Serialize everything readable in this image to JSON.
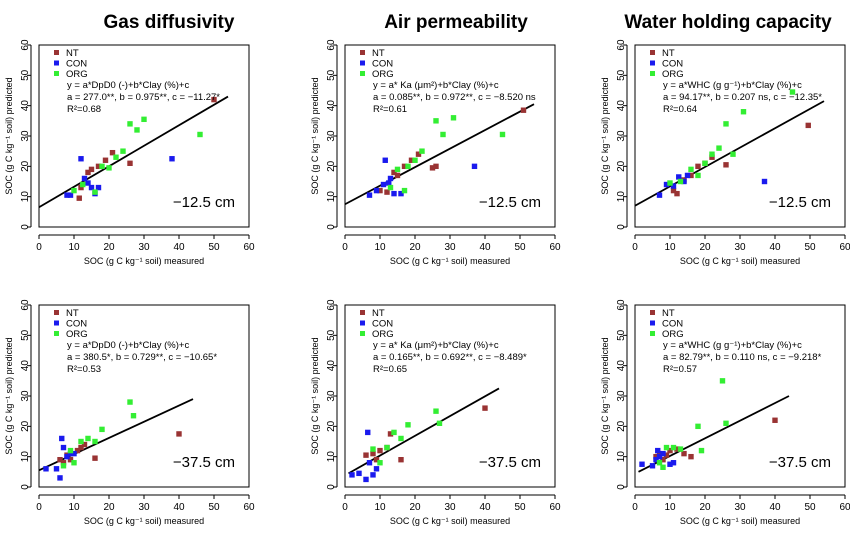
{
  "titles": [
    "Gas diffusivity",
    "Air permeability",
    "Water holding capacity"
  ],
  "xlabel": "SOC (g C kg⁻¹ soil) measured",
  "ylabel": "SOC (g C kg⁻¹ soil)  predicted",
  "legend": [
    "NT",
    "CON",
    "ORG"
  ],
  "colors": {
    "NT": "#993333",
    "CON": "#1a1aee",
    "ORG": "#33ee33",
    "line": "#000000"
  },
  "chart_data": [
    {
      "type": "scatter",
      "row": 0,
      "col": 0,
      "xlim": [
        0,
        60
      ],
      "ylim": [
        0,
        60
      ],
      "ticks": [
        0,
        10,
        20,
        30,
        40,
        50,
        60
      ],
      "equation": "y = a*DpD0 (-)+b*Clay (%)+c",
      "params": "a = 277.0**, b = 0.975**, c = −11.27*",
      "r2": "R²=0.68",
      "depth": "−12.5 cm",
      "fit": [
        [
          0,
          6.5
        ],
        [
          54,
          43
        ]
      ],
      "series": [
        {
          "name": "NT",
          "points": [
            [
              11.5,
              9.5
            ],
            [
              12,
              13
            ],
            [
              14,
              18
            ],
            [
              15,
              19
            ],
            [
              17,
              20
            ],
            [
              19,
              22
            ],
            [
              21,
              24.5
            ],
            [
              26,
              21
            ],
            [
              50,
              42
            ]
          ]
        },
        {
          "name": "CON",
          "points": [
            [
              8,
              10.5
            ],
            [
              9,
              10.5
            ],
            [
              12,
              22.5
            ],
            [
              13,
              16
            ],
            [
              14,
              14.5
            ],
            [
              15,
              13
            ],
            [
              16,
              11
            ],
            [
              17,
              13
            ],
            [
              38,
              22.5
            ]
          ]
        },
        {
          "name": "ORG",
          "points": [
            [
              10,
              12
            ],
            [
              12.5,
              14
            ],
            [
              16,
              11.5
            ],
            [
              18,
              20
            ],
            [
              20,
              19.5
            ],
            [
              22,
              23
            ],
            [
              24,
              25
            ],
            [
              26,
              34
            ],
            [
              28,
              32
            ],
            [
              30,
              35.5
            ],
            [
              46,
              30.5
            ]
          ]
        }
      ]
    },
    {
      "type": "scatter",
      "row": 0,
      "col": 1,
      "xlim": [
        0,
        60
      ],
      "ylim": [
        0,
        60
      ],
      "ticks": [
        0,
        10,
        20,
        30,
        40,
        50,
        60
      ],
      "equation": "y = a* Ka (μm²)+b*Clay (%)+c",
      "params": "a = 0.085**, b = 0.972**, c = −8.520 ns",
      "r2": "R²=0.61",
      "depth": "−12.5 cm",
      "fit": [
        [
          0,
          7.5
        ],
        [
          54,
          40.5
        ]
      ],
      "series": [
        {
          "name": "NT",
          "points": [
            [
              10,
              12
            ],
            [
              12,
              11.5
            ],
            [
              14,
              18
            ],
            [
              15,
              17
            ],
            [
              17,
              20
            ],
            [
              19,
              22
            ],
            [
              21,
              24
            ],
            [
              25,
              19.5
            ],
            [
              26,
              20
            ],
            [
              51,
              38.5
            ]
          ]
        },
        {
          "name": "CON",
          "points": [
            [
              7,
              10.5
            ],
            [
              9,
              12
            ],
            [
              11,
              14
            ],
            [
              11.5,
              22
            ],
            [
              12.5,
              14.5
            ],
            [
              13,
              16
            ],
            [
              14,
              11
            ],
            [
              16,
              11
            ],
            [
              37,
              20
            ]
          ]
        },
        {
          "name": "ORG",
          "points": [
            [
              13,
              13
            ],
            [
              15,
              19
            ],
            [
              17,
              12
            ],
            [
              18,
              20
            ],
            [
              20,
              22
            ],
            [
              22,
              25
            ],
            [
              26,
              35
            ],
            [
              28,
              30.5
            ],
            [
              31,
              36
            ],
            [
              45,
              30.5
            ]
          ]
        }
      ]
    },
    {
      "type": "scatter",
      "row": 0,
      "col": 2,
      "xlim": [
        0,
        60
      ],
      "ylim": [
        0,
        60
      ],
      "ticks": [
        0,
        10,
        20,
        30,
        40,
        50,
        60
      ],
      "equation": "y = a*WHC (g g⁻¹)+b*Clay (%)+c",
      "params": "a = 94.17**, b = 0.207 ns, c = −12.35*",
      "r2": "R²=0.64",
      "depth": "−12.5 cm",
      "fit": [
        [
          0,
          7
        ],
        [
          54,
          41.5
        ]
      ],
      "series": [
        {
          "name": "NT",
          "points": [
            [
              11,
              12
            ],
            [
              12,
              11
            ],
            [
              14,
              15.5
            ],
            [
              16,
              17
            ],
            [
              18,
              20
            ],
            [
              20,
              21
            ],
            [
              22,
              23
            ],
            [
              26,
              20.5
            ],
            [
              49.5,
              33.5
            ]
          ]
        },
        {
          "name": "CON",
          "points": [
            [
              7,
              10.5
            ],
            [
              9,
              14
            ],
            [
              11,
              13.5
            ],
            [
              12.5,
              16.5
            ],
            [
              14,
              15
            ],
            [
              15,
              17
            ],
            [
              37,
              15
            ]
          ]
        },
        {
          "name": "ORG",
          "points": [
            [
              10,
              14.5
            ],
            [
              13,
              15
            ],
            [
              16,
              19
            ],
            [
              18,
              17
            ],
            [
              20,
              21
            ],
            [
              22,
              24
            ],
            [
              24,
              26
            ],
            [
              26,
              34
            ],
            [
              28,
              24
            ],
            [
              31,
              38
            ],
            [
              45,
              44.5
            ]
          ]
        }
      ]
    },
    {
      "type": "scatter",
      "row": 1,
      "col": 0,
      "xlim": [
        0,
        60
      ],
      "ylim": [
        0,
        60
      ],
      "ticks": [
        0,
        10,
        20,
        30,
        40,
        50,
        60
      ],
      "equation": "y = a*DpD0 (-)+b*Clay (%)+c",
      "params": "a = 380.5*, b = 0.729**, c = −10.65*",
      "r2": "R²=0.53",
      "depth": "−37.5 cm",
      "fit": [
        [
          0,
          5.5
        ],
        [
          44,
          29
        ]
      ],
      "series": [
        {
          "name": "NT",
          "points": [
            [
              6,
              9
            ],
            [
              7,
              8
            ],
            [
              8,
              10.5
            ],
            [
              9,
              9
            ],
            [
              11,
              12
            ],
            [
              12,
              13
            ],
            [
              13,
              14
            ],
            [
              16,
              9.5
            ],
            [
              40,
              17.5
            ]
          ]
        },
        {
          "name": "CON",
          "points": [
            [
              2,
              6
            ],
            [
              5,
              6
            ],
            [
              6,
              3
            ],
            [
              6.5,
              16
            ],
            [
              7,
              13
            ],
            [
              8,
              10
            ],
            [
              9,
              11
            ],
            [
              10,
              11
            ]
          ]
        },
        {
          "name": "ORG",
          "points": [
            [
              7,
              7
            ],
            [
              9,
              12
            ],
            [
              10,
              8
            ],
            [
              12,
              15
            ],
            [
              14,
              16
            ],
            [
              16,
              15
            ],
            [
              18,
              19
            ],
            [
              26,
              28
            ],
            [
              27,
              23.5
            ]
          ]
        }
      ]
    },
    {
      "type": "scatter",
      "row": 1,
      "col": 1,
      "xlim": [
        0,
        60
      ],
      "ylim": [
        0,
        60
      ],
      "ticks": [
        0,
        10,
        20,
        30,
        40,
        50,
        60
      ],
      "equation": "y = a* Ka (μm²)+b*Clay (%)+c",
      "params": "a = 0.165**, b = 0.692**, c = −8.489*",
      "r2": "R²=0.65",
      "depth": "−37.5 cm",
      "fit": [
        [
          1,
          4.5
        ],
        [
          44,
          32.5
        ]
      ],
      "series": [
        {
          "name": "NT",
          "points": [
            [
              6,
              10.5
            ],
            [
              8,
              11
            ],
            [
              9,
              9
            ],
            [
              10,
              12
            ],
            [
              12,
              13
            ],
            [
              13,
              17.5
            ],
            [
              16,
              9
            ],
            [
              40,
              26
            ]
          ]
        },
        {
          "name": "CON",
          "points": [
            [
              2,
              4
            ],
            [
              4,
              4.5
            ],
            [
              6,
              2.5
            ],
            [
              6.5,
              18
            ],
            [
              7,
              8
            ],
            [
              8,
              4
            ],
            [
              9,
              6
            ]
          ]
        },
        {
          "name": "ORG",
          "points": [
            [
              8,
              12.5
            ],
            [
              10,
              8
            ],
            [
              12,
              13
            ],
            [
              14,
              18
            ],
            [
              16,
              16
            ],
            [
              18,
              20.5
            ],
            [
              26,
              25
            ],
            [
              27,
              21
            ]
          ]
        }
      ]
    },
    {
      "type": "scatter",
      "row": 1,
      "col": 2,
      "xlim": [
        0,
        60
      ],
      "ylim": [
        0,
        60
      ],
      "ticks": [
        0,
        10,
        20,
        30,
        40,
        50,
        60
      ],
      "equation": "y = a*WHC (g g⁻¹)+b*Clay (%)+c",
      "params": "a = 82.79**, b = 0.110 ns, c = −9.218*",
      "r2": "R²=0.57",
      "depth": "−37.5 cm",
      "fit": [
        [
          1,
          5
        ],
        [
          44,
          30
        ]
      ],
      "series": [
        {
          "name": "NT",
          "points": [
            [
              6,
              10
            ],
            [
              7,
              11
            ],
            [
              8,
              9
            ],
            [
              9,
              10.5
            ],
            [
              10,
              12
            ],
            [
              12,
              12.5
            ],
            [
              14,
              11
            ],
            [
              16,
              10
            ],
            [
              40,
              22
            ]
          ]
        },
        {
          "name": "CON",
          "points": [
            [
              2,
              7.5
            ],
            [
              5,
              7
            ],
            [
              6,
              9
            ],
            [
              6.5,
              12
            ],
            [
              7,
              10
            ],
            [
              8,
              11
            ],
            [
              10,
              7.5
            ],
            [
              11,
              8
            ]
          ]
        },
        {
          "name": "ORG",
          "points": [
            [
              7,
              8
            ],
            [
              8,
              6.5
            ],
            [
              9,
              13
            ],
            [
              11,
              13
            ],
            [
              13,
              12.5
            ],
            [
              18,
              20
            ],
            [
              19,
              12
            ],
            [
              25,
              35
            ],
            [
              26,
              21
            ]
          ]
        }
      ]
    }
  ]
}
